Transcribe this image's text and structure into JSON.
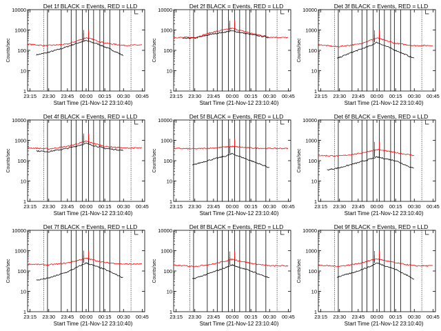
{
  "chart_data": [
    {
      "type": "line",
      "title": "Det  1f BLACK = Events, RED = LLD",
      "xlabel": "Start Time (21-Nov-12 23:10:40)",
      "ylabel": "Counts/sec",
      "ylim": [
        1,
        10000
      ],
      "yscale": "log",
      "xticks": [
        "23:15",
        "23:30",
        "23:45",
        "00:00",
        "00:15",
        "00:30",
        "00:45"
      ],
      "yticks": [
        "1",
        "10",
        "100",
        "1000",
        "10000"
      ],
      "series": [
        {
          "color": "#000000",
          "values": [
            {
              "x": "23:20",
              "y": 60
            },
            {
              "x": "23:28",
              "y": 75
            },
            {
              "x": "23:40",
              "y": 120
            },
            {
              "x": "23:55",
              "y": 250
            },
            {
              "x": "00:00",
              "y": 300
            },
            {
              "x": "00:10",
              "y": 200
            },
            {
              "x": "00:20",
              "y": 110
            },
            {
              "x": "00:30",
              "y": 55
            }
          ]
        },
        {
          "color": "#ff0000",
          "values": [
            {
              "x": "23:13",
              "y": 200
            },
            {
              "x": "23:28",
              "y": 170
            },
            {
              "x": "23:45",
              "y": 200
            },
            {
              "x": "00:00",
              "y": 420
            },
            {
              "x": "00:15",
              "y": 230
            },
            {
              "x": "00:30",
              "y": 175
            },
            {
              "x": "00:45",
              "y": 185
            }
          ]
        }
      ]
    },
    {
      "type": "line",
      "title": "Det  2f BLACK = Events, RED = LLD",
      "xlabel": "Start Time (21-Nov-12 23:10:40)",
      "ylabel": "Counts/sec",
      "ylim": [
        1,
        10000
      ],
      "yscale": "log",
      "xticks": [
        "23:15",
        "23:30",
        "23:45",
        "00:00",
        "00:15",
        "00:30",
        "00:45"
      ],
      "yticks": [
        "1",
        "10",
        "100",
        "1000",
        "10000"
      ],
      "series": [
        {
          "color": "#000000",
          "values": [
            {
              "x": "23:20",
              "y": 380
            },
            {
              "x": "23:30",
              "y": 400
            },
            {
              "x": "23:45",
              "y": 650
            },
            {
              "x": "00:00",
              "y": 900
            },
            {
              "x": "00:15",
              "y": 600
            },
            {
              "x": "00:30",
              "y": 420
            }
          ]
        },
        {
          "color": "#ff0000",
          "values": [
            {
              "x": "23:13",
              "y": 430
            },
            {
              "x": "23:30",
              "y": 430
            },
            {
              "x": "23:45",
              "y": 800
            },
            {
              "x": "00:00",
              "y": 1200
            },
            {
              "x": "00:15",
              "y": 700
            },
            {
              "x": "00:30",
              "y": 450
            },
            {
              "x": "00:45",
              "y": 420
            }
          ]
        }
      ]
    },
    {
      "type": "line",
      "title": "Det  3f BLACK = Events, RED = LLD",
      "xlabel": "Start Time (21-Nov-12 23:10:40)",
      "ylabel": "Counts/sec",
      "ylim": [
        1,
        10000
      ],
      "yscale": "log",
      "xticks": [
        "23:15",
        "23:30",
        "23:45",
        "00:00",
        "00:15",
        "00:30",
        "00:45"
      ],
      "yticks": [
        "1",
        "10",
        "100",
        "1000",
        "10000"
      ],
      "series": [
        {
          "color": "#000000",
          "values": [
            {
              "x": "23:28",
              "y": 40
            },
            {
              "x": "23:40",
              "y": 80
            },
            {
              "x": "23:55",
              "y": 170
            },
            {
              "x": "00:00",
              "y": 250
            },
            {
              "x": "00:15",
              "y": 100
            },
            {
              "x": "00:30",
              "y": 40
            }
          ]
        },
        {
          "color": "#ff0000",
          "values": [
            {
              "x": "23:13",
              "y": 190
            },
            {
              "x": "23:28",
              "y": 150
            },
            {
              "x": "23:45",
              "y": 200
            },
            {
              "x": "00:00",
              "y": 400
            },
            {
              "x": "00:15",
              "y": 220
            },
            {
              "x": "00:30",
              "y": 170
            },
            {
              "x": "00:45",
              "y": 175
            }
          ]
        }
      ]
    },
    {
      "type": "line",
      "title": "Det  4f BLACK = Events, RED = LLD",
      "xlabel": "Start Time (21-Nov-12 23:10:40)",
      "ylabel": "Counts/sec",
      "ylim": [
        1,
        10000
      ],
      "yscale": "log",
      "xticks": [
        "23:15",
        "23:30",
        "23:45",
        "00:00",
        "00:15",
        "00:30",
        "00:45"
      ],
      "yticks": [
        "1",
        "10",
        "100",
        "1000",
        "10000"
      ],
      "series": [
        {
          "color": "#000000",
          "values": [
            {
              "x": "23:20",
              "y": 300
            },
            {
              "x": "23:30",
              "y": 280
            },
            {
              "x": "23:45",
              "y": 400
            },
            {
              "x": "00:00",
              "y": 700
            },
            {
              "x": "00:15",
              "y": 400
            },
            {
              "x": "00:30",
              "y": 320
            }
          ]
        },
        {
          "color": "#ff0000",
          "values": [
            {
              "x": "23:13",
              "y": 430
            },
            {
              "x": "23:30",
              "y": 380
            },
            {
              "x": "23:45",
              "y": 500
            },
            {
              "x": "00:00",
              "y": 900
            },
            {
              "x": "00:15",
              "y": 500
            },
            {
              "x": "00:30",
              "y": 420
            },
            {
              "x": "00:45",
              "y": 420
            }
          ]
        }
      ]
    },
    {
      "type": "line",
      "title": "Det  5f BLACK = Events, RED = LLD",
      "xlabel": "Start Time (21-Nov-12 23:10:40)",
      "ylabel": "Counts/sec",
      "ylim": [
        1,
        10000
      ],
      "yscale": "log",
      "xticks": [
        "23:15",
        "23:30",
        "23:45",
        "00:00",
        "00:15",
        "00:30",
        "00:45"
      ],
      "yticks": [
        "1",
        "10",
        "100",
        "1000",
        "10000"
      ],
      "series": [
        {
          "color": "#000000",
          "values": [
            {
              "x": "23:28",
              "y": 60
            },
            {
              "x": "23:40",
              "y": 100
            },
            {
              "x": "23:55",
              "y": 170
            },
            {
              "x": "00:00",
              "y": 220
            },
            {
              "x": "00:15",
              "y": 100
            },
            {
              "x": "00:30",
              "y": 45
            }
          ]
        },
        {
          "color": "#ff0000",
          "values": [
            {
              "x": "23:13",
              "y": 400
            },
            {
              "x": "23:30",
              "y": 380
            },
            {
              "x": "23:45",
              "y": 420
            },
            {
              "x": "00:00",
              "y": 500
            },
            {
              "x": "00:15",
              "y": 420
            },
            {
              "x": "00:30",
              "y": 400
            },
            {
              "x": "00:45",
              "y": 400
            }
          ]
        }
      ]
    },
    {
      "type": "line",
      "title": "Det  6f BLACK = Events, RED = LLD",
      "xlabel": "Start Time (21-Nov-12 23:10:40)",
      "ylabel": "Counts/sec",
      "ylim": [
        1,
        10000
      ],
      "yscale": "log",
      "xticks": [
        "23:15",
        "23:30",
        "23:45",
        "00:00",
        "00:15",
        "00:30",
        "00:45"
      ],
      "yticks": [
        "1",
        "10",
        "100",
        "1000",
        "10000"
      ],
      "series": [
        {
          "color": "#000000",
          "values": [
            {
              "x": "23:20",
              "y": 35
            },
            {
              "x": "23:30",
              "y": 45
            },
            {
              "x": "23:45",
              "y": 80
            },
            {
              "x": "00:00",
              "y": 150
            },
            {
              "x": "00:15",
              "y": 100
            },
            {
              "x": "00:30",
              "y": 40
            }
          ]
        },
        {
          "color": "#ff0000",
          "values": [
            {
              "x": "23:13",
              "y": 180
            },
            {
              "x": "23:30",
              "y": 170
            },
            {
              "x": "23:45",
              "y": 220
            },
            {
              "x": "00:00",
              "y": 350
            },
            {
              "x": "00:15",
              "y": 250
            },
            {
              "x": "00:30",
              "y": 180
            }
          ]
        }
      ]
    },
    {
      "type": "line",
      "title": "Det  7f BLACK = Events, RED = LLD",
      "xlabel": "Start Time (21-Nov-12 23:10:40)",
      "ylabel": "Counts/sec",
      "ylim": [
        1,
        10000
      ],
      "yscale": "log",
      "xticks": [
        "23:15",
        "23:30",
        "23:45",
        "00:00",
        "00:15",
        "00:30",
        "00:45"
      ],
      "yticks": [
        "1",
        "10",
        "100",
        "1000",
        "10000"
      ],
      "series": [
        {
          "color": "#000000",
          "values": [
            {
              "x": "23:20",
              "y": 35
            },
            {
              "x": "23:30",
              "y": 45
            },
            {
              "x": "23:45",
              "y": 90
            },
            {
              "x": "00:00",
              "y": 250
            },
            {
              "x": "00:15",
              "y": 120
            },
            {
              "x": "00:30",
              "y": 45
            }
          ]
        },
        {
          "color": "#ff0000",
          "values": [
            {
              "x": "23:13",
              "y": 220
            },
            {
              "x": "23:30",
              "y": 200
            },
            {
              "x": "23:45",
              "y": 250
            },
            {
              "x": "00:00",
              "y": 420
            },
            {
              "x": "00:15",
              "y": 260
            },
            {
              "x": "00:30",
              "y": 220
            },
            {
              "x": "00:45",
              "y": 220
            }
          ]
        }
      ]
    },
    {
      "type": "line",
      "title": "Det  8f BLACK = Events, RED = LLD",
      "xlabel": "Start Time (21-Nov-12 23:10:40)",
      "ylabel": "Counts/sec",
      "ylim": [
        1,
        10000
      ],
      "yscale": "log",
      "xticks": [
        "23:15",
        "23:30",
        "23:45",
        "00:00",
        "00:15",
        "00:30",
        "00:45"
      ],
      "yticks": [
        "1",
        "10",
        "100",
        "1000",
        "10000"
      ],
      "series": [
        {
          "color": "#000000",
          "values": [
            {
              "x": "23:28",
              "y": 40
            },
            {
              "x": "23:40",
              "y": 70
            },
            {
              "x": "23:55",
              "y": 150
            },
            {
              "x": "00:00",
              "y": 200
            },
            {
              "x": "00:15",
              "y": 100
            },
            {
              "x": "00:30",
              "y": 45
            }
          ]
        },
        {
          "color": "#ff0000",
          "values": [
            {
              "x": "23:13",
              "y": 190
            },
            {
              "x": "23:30",
              "y": 170
            },
            {
              "x": "23:45",
              "y": 220
            },
            {
              "x": "00:00",
              "y": 380
            },
            {
              "x": "00:15",
              "y": 240
            },
            {
              "x": "00:30",
              "y": 180
            },
            {
              "x": "00:45",
              "y": 180
            }
          ]
        }
      ]
    },
    {
      "type": "line",
      "title": "Det  9f BLACK = Events, RED = LLD",
      "xlabel": "Start Time (21-Nov-12 23:10:40)",
      "ylabel": "Counts/sec",
      "ylim": [
        1,
        10000
      ],
      "yscale": "log",
      "xticks": [
        "23:15",
        "23:30",
        "23:45",
        "00:00",
        "00:15",
        "00:30",
        "00:45"
      ],
      "yticks": [
        "1",
        "10",
        "100",
        "1000",
        "10000"
      ],
      "series": [
        {
          "color": "#000000",
          "values": [
            {
              "x": "23:28",
              "y": 50
            },
            {
              "x": "23:40",
              "y": 80
            },
            {
              "x": "23:55",
              "y": 170
            },
            {
              "x": "00:00",
              "y": 250
            },
            {
              "x": "00:15",
              "y": 120
            },
            {
              "x": "00:30",
              "y": 40
            }
          ]
        },
        {
          "color": "#ff0000",
          "values": [
            {
              "x": "23:13",
              "y": 190
            },
            {
              "x": "23:30",
              "y": 170
            },
            {
              "x": "23:45",
              "y": 230
            },
            {
              "x": "00:00",
              "y": 400
            },
            {
              "x": "00:15",
              "y": 250
            },
            {
              "x": "00:30",
              "y": 180
            },
            {
              "x": "00:45",
              "y": 180
            }
          ]
        }
      ]
    }
  ]
}
